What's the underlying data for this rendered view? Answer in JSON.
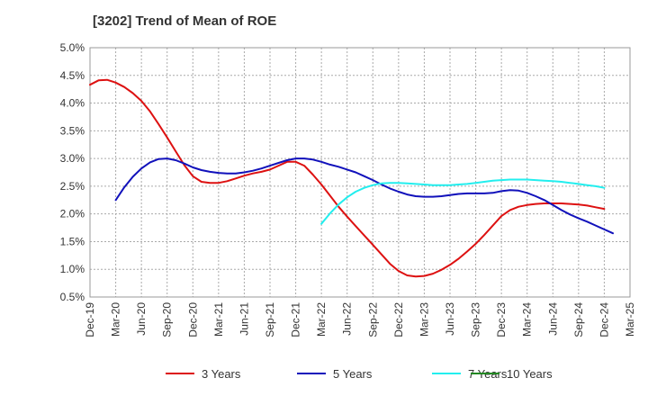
{
  "chart_data": {
    "type": "line",
    "title": "[3202]  Trend of Mean of ROE",
    "xlabel": "",
    "ylabel": "",
    "x_ticks": [
      "Dec-19",
      "Mar-20",
      "Jun-20",
      "Sep-20",
      "Dec-20",
      "Mar-21",
      "Jun-21",
      "Sep-21",
      "Dec-21",
      "Mar-22",
      "Jun-22",
      "Sep-22",
      "Dec-22",
      "Mar-23",
      "Jun-23",
      "Sep-23",
      "Dec-23",
      "Mar-24",
      "Jun-24",
      "Sep-24",
      "Dec-24",
      "Mar-25"
    ],
    "y_ticks": [
      "0.5%",
      "1.0%",
      "1.5%",
      "2.0%",
      "2.5%",
      "3.0%",
      "3.5%",
      "4.0%",
      "4.5%",
      "5.0%"
    ],
    "ylim": [
      0.5,
      5.0
    ],
    "grid": true,
    "legend_position": "bottom",
    "series": [
      {
        "name": "3 Years",
        "color": "#dd1111",
        "values": [
          [
            "Dec-19",
            4.33
          ],
          [
            "Jan-20",
            4.41
          ],
          [
            "Feb-20",
            4.42
          ],
          [
            "Mar-20",
            4.37
          ],
          [
            "Apr-20",
            4.29
          ],
          [
            "May-20",
            4.18
          ],
          [
            "Jun-20",
            4.04
          ],
          [
            "Jul-20",
            3.85
          ],
          [
            "Aug-20",
            3.62
          ],
          [
            "Sep-20",
            3.38
          ],
          [
            "Oct-20",
            3.13
          ],
          [
            "Nov-20",
            2.88
          ],
          [
            "Dec-20",
            2.68
          ],
          [
            "Jan-21",
            2.58
          ],
          [
            "Feb-21",
            2.56
          ],
          [
            "Mar-21",
            2.56
          ],
          [
            "Apr-21",
            2.59
          ],
          [
            "May-21",
            2.64
          ],
          [
            "Jun-21",
            2.69
          ],
          [
            "Jul-21",
            2.73
          ],
          [
            "Aug-21",
            2.76
          ],
          [
            "Sep-21",
            2.8
          ],
          [
            "Oct-21",
            2.87
          ],
          [
            "Nov-21",
            2.94
          ],
          [
            "Dec-21",
            2.94
          ],
          [
            "Jan-22",
            2.87
          ],
          [
            "Feb-22",
            2.71
          ],
          [
            "Mar-22",
            2.53
          ],
          [
            "Apr-22",
            2.33
          ],
          [
            "May-22",
            2.13
          ],
          [
            "Jun-22",
            1.95
          ],
          [
            "Jul-22",
            1.78
          ],
          [
            "Aug-22",
            1.61
          ],
          [
            "Sep-22",
            1.44
          ],
          [
            "Oct-22",
            1.27
          ],
          [
            "Nov-22",
            1.1
          ],
          [
            "Dec-22",
            0.97
          ],
          [
            "Jan-23",
            0.89
          ],
          [
            "Feb-23",
            0.87
          ],
          [
            "Mar-23",
            0.88
          ],
          [
            "Apr-23",
            0.92
          ],
          [
            "May-23",
            0.99
          ],
          [
            "Jun-23",
            1.08
          ],
          [
            "Jul-23",
            1.19
          ],
          [
            "Aug-23",
            1.32
          ],
          [
            "Sep-23",
            1.46
          ],
          [
            "Oct-23",
            1.62
          ],
          [
            "Nov-23",
            1.79
          ],
          [
            "Dec-23",
            1.96
          ],
          [
            "Jan-24",
            2.07
          ],
          [
            "Feb-24",
            2.13
          ],
          [
            "Mar-24",
            2.16
          ],
          [
            "Apr-24",
            2.18
          ],
          [
            "May-24",
            2.19
          ],
          [
            "Jun-24",
            2.19
          ],
          [
            "Jul-24",
            2.19
          ],
          [
            "Aug-24",
            2.18
          ],
          [
            "Sep-24",
            2.17
          ],
          [
            "Oct-24",
            2.15
          ],
          [
            "Nov-24",
            2.12
          ],
          [
            "Dec-24",
            2.09
          ]
        ]
      },
      {
        "name": "5 Years",
        "color": "#1111bb",
        "values": [
          [
            "Mar-20",
            2.25
          ],
          [
            "Apr-20",
            2.48
          ],
          [
            "May-20",
            2.67
          ],
          [
            "Jun-20",
            2.82
          ],
          [
            "Jul-20",
            2.93
          ],
          [
            "Aug-20",
            2.99
          ],
          [
            "Sep-20",
            3.0
          ],
          [
            "Oct-20",
            2.97
          ],
          [
            "Nov-20",
            2.91
          ],
          [
            "Dec-20",
            2.84
          ],
          [
            "Jan-21",
            2.79
          ],
          [
            "Feb-21",
            2.76
          ],
          [
            "Mar-21",
            2.74
          ],
          [
            "Apr-21",
            2.73
          ],
          [
            "May-21",
            2.73
          ],
          [
            "Jun-21",
            2.75
          ],
          [
            "Jul-21",
            2.78
          ],
          [
            "Aug-21",
            2.82
          ],
          [
            "Sep-21",
            2.87
          ],
          [
            "Oct-21",
            2.92
          ],
          [
            "Nov-21",
            2.97
          ],
          [
            "Dec-21",
            3.0
          ],
          [
            "Jan-22",
            3.0
          ],
          [
            "Feb-22",
            2.98
          ],
          [
            "Mar-22",
            2.94
          ],
          [
            "Apr-22",
            2.89
          ],
          [
            "May-22",
            2.85
          ],
          [
            "Jun-22",
            2.8
          ],
          [
            "Jul-22",
            2.75
          ],
          [
            "Aug-22",
            2.68
          ],
          [
            "Sep-22",
            2.61
          ],
          [
            "Oct-22",
            2.53
          ],
          [
            "Nov-22",
            2.46
          ],
          [
            "Dec-22",
            2.4
          ],
          [
            "Jan-23",
            2.35
          ],
          [
            "Feb-23",
            2.32
          ],
          [
            "Mar-23",
            2.31
          ],
          [
            "Apr-23",
            2.31
          ],
          [
            "May-23",
            2.32
          ],
          [
            "Jun-23",
            2.34
          ],
          [
            "Jul-23",
            2.36
          ],
          [
            "Aug-23",
            2.37
          ],
          [
            "Sep-23",
            2.37
          ],
          [
            "Oct-23",
            2.37
          ],
          [
            "Nov-23",
            2.38
          ],
          [
            "Dec-23",
            2.41
          ],
          [
            "Jan-24",
            2.43
          ],
          [
            "Feb-24",
            2.42
          ],
          [
            "Mar-24",
            2.38
          ],
          [
            "Apr-24",
            2.32
          ],
          [
            "May-24",
            2.25
          ],
          [
            "Jun-24",
            2.16
          ],
          [
            "Jul-24",
            2.07
          ],
          [
            "Aug-24",
            1.99
          ],
          [
            "Sep-24",
            1.92
          ],
          [
            "Oct-24",
            1.86
          ],
          [
            "Nov-24",
            1.79
          ],
          [
            "Dec-24",
            1.72
          ],
          [
            "Jan-25",
            1.65
          ]
        ]
      },
      {
        "name": "7 Years",
        "color": "#22eeee",
        "values": [
          [
            "Mar-22",
            1.82
          ],
          [
            "Apr-22",
            2.01
          ],
          [
            "May-22",
            2.17
          ],
          [
            "Jun-22",
            2.3
          ],
          [
            "Jul-22",
            2.4
          ],
          [
            "Aug-22",
            2.47
          ],
          [
            "Sep-22",
            2.52
          ],
          [
            "Oct-22",
            2.55
          ],
          [
            "Nov-22",
            2.56
          ],
          [
            "Dec-22",
            2.56
          ],
          [
            "Jan-23",
            2.55
          ],
          [
            "Feb-23",
            2.54
          ],
          [
            "Mar-23",
            2.53
          ],
          [
            "Apr-23",
            2.52
          ],
          [
            "May-23",
            2.52
          ],
          [
            "Jun-23",
            2.52
          ],
          [
            "Jul-23",
            2.53
          ],
          [
            "Aug-23",
            2.54
          ],
          [
            "Sep-23",
            2.56
          ],
          [
            "Oct-23",
            2.58
          ],
          [
            "Nov-23",
            2.6
          ],
          [
            "Dec-23",
            2.61
          ],
          [
            "Jan-24",
            2.62
          ],
          [
            "Feb-24",
            2.62
          ],
          [
            "Mar-24",
            2.62
          ],
          [
            "Apr-24",
            2.61
          ],
          [
            "May-24",
            2.6
          ],
          [
            "Jun-24",
            2.59
          ],
          [
            "Jul-24",
            2.58
          ],
          [
            "Aug-24",
            2.56
          ],
          [
            "Sep-24",
            2.54
          ],
          [
            "Oct-24",
            2.52
          ],
          [
            "Nov-24",
            2.5
          ],
          [
            "Dec-24",
            2.47
          ]
        ]
      },
      {
        "name": "10 Years",
        "color": "#228822",
        "values": []
      }
    ]
  }
}
